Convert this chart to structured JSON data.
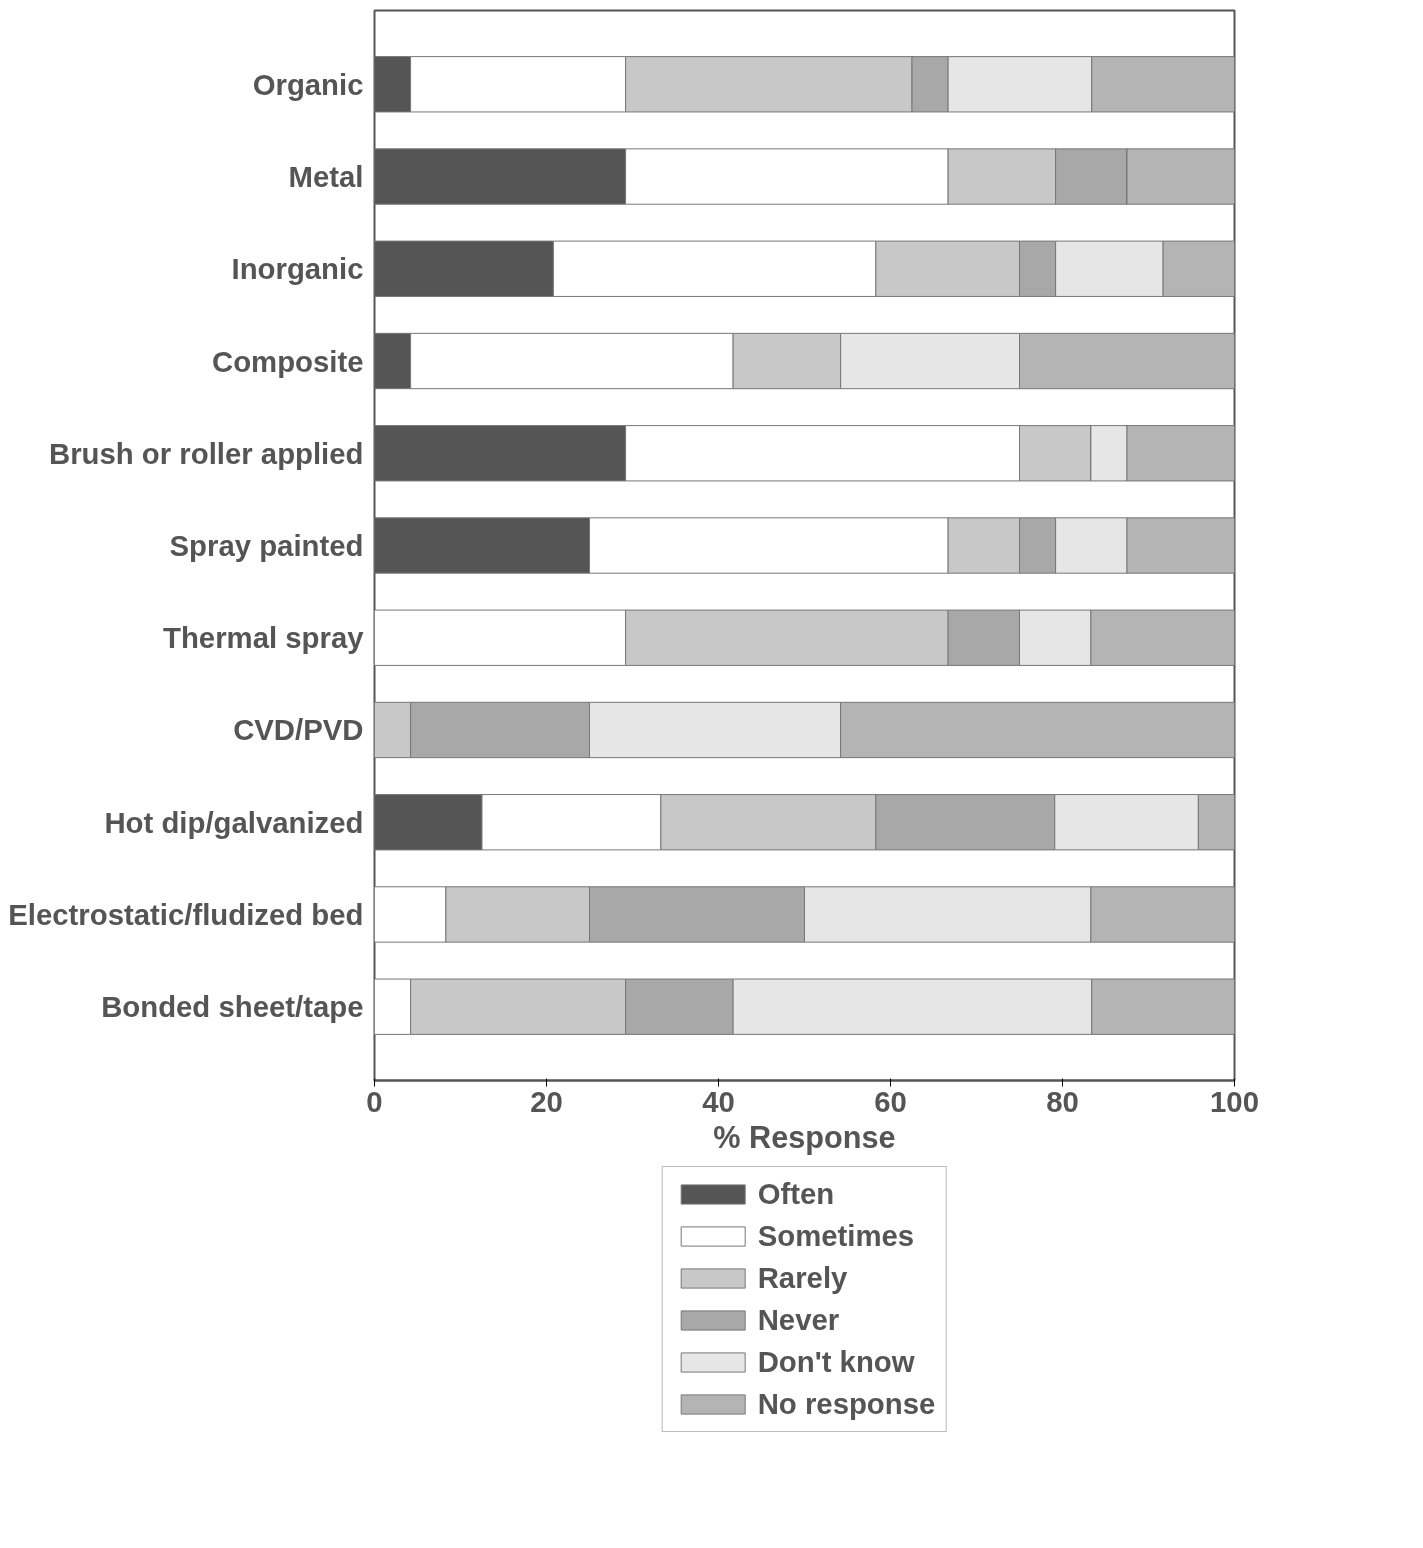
{
  "chart_data": {
    "type": "bar",
    "orientation": "horizontal",
    "stacked": true,
    "xlabel": "% Response",
    "categories": [
      "Organic",
      "Metal",
      "Inorganic",
      "Composite",
      "Brush or roller applied",
      "Spray painted",
      "Thermal spray",
      "CVD/PVD",
      "Hot dip/galvanized",
      "Electrostatic/fludized bed",
      "Bonded sheet/tape"
    ],
    "series": [
      {
        "name": "Often",
        "color": "#555555",
        "values": [
          4.2,
          29.2,
          20.8,
          4.2,
          29.2,
          25,
          0,
          0,
          12.5,
          0,
          0
        ]
      },
      {
        "name": "Sometimes",
        "color": "#ffffff",
        "values": [
          25,
          37.5,
          37.5,
          37.5,
          45.8,
          41.7,
          29.2,
          0,
          20.8,
          8.3,
          4.2
        ]
      },
      {
        "name": "Rarely",
        "color": "#c8c8c8",
        "values": [
          33.3,
          12.5,
          16.7,
          12.5,
          8.3,
          8.3,
          37.5,
          4.2,
          25,
          16.7,
          25
        ]
      },
      {
        "name": "Never",
        "color": "#a8a8a8",
        "values": [
          4.2,
          8.3,
          4.2,
          0,
          0,
          4.2,
          8.3,
          20.8,
          20.8,
          25,
          12.5
        ]
      },
      {
        "name": "Don't know",
        "color": "#e6e6e6",
        "values": [
          16.7,
          0,
          12.5,
          20.8,
          4.2,
          8.3,
          8.3,
          29.2,
          16.7,
          33.3,
          41.7
        ]
      },
      {
        "name": "No response",
        "color": "#b4b4b4",
        "values": [
          16.7,
          12.5,
          8.3,
          25,
          12.5,
          12.5,
          16.7,
          45.8,
          4.2,
          16.7,
          16.7
        ]
      }
    ],
    "xlim": [
      0,
      100
    ],
    "xticks": [
      0,
      20,
      40,
      60,
      80,
      100
    ],
    "grid": false,
    "legend": "bottom"
  }
}
